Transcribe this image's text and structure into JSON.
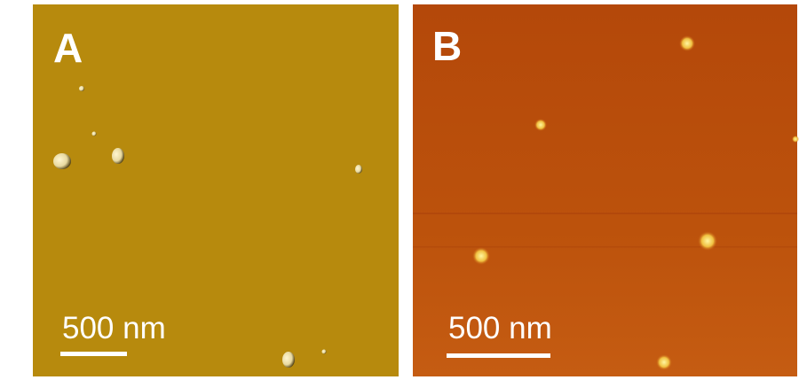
{
  "panels": [
    {
      "label": "A",
      "scale_bar": "500 nm"
    },
    {
      "label": "B",
      "scale_bar": "500 nm"
    }
  ]
}
